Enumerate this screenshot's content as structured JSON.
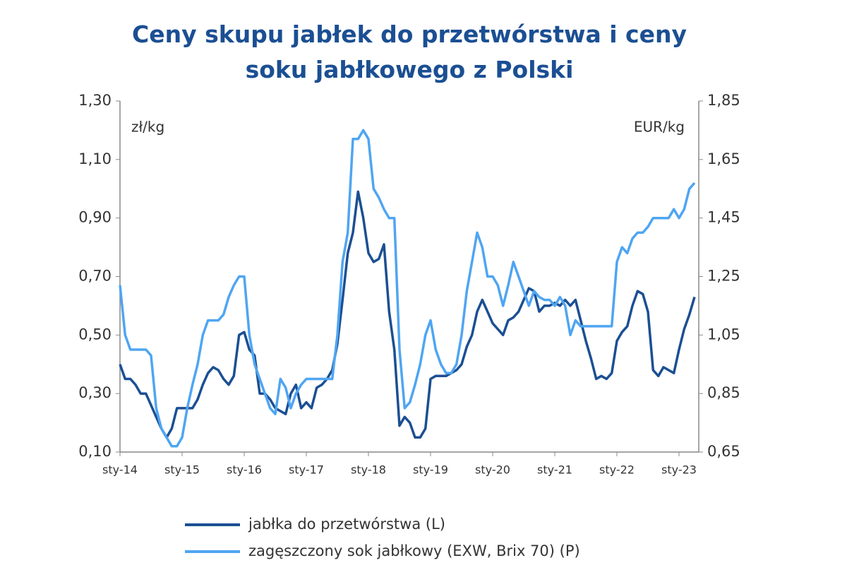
{
  "chart_data": {
    "type": "line",
    "title": "Ceny skupu jabłek do przetwórstwa i ceny soku jabłkowego z Polski",
    "y_label": "zł/kg",
    "y2_label": "EUR/kg",
    "categories": [
      "sty-14",
      null,
      null,
      null,
      null,
      null,
      null,
      null,
      null,
      null,
      null,
      null,
      "sty-15",
      null,
      null,
      null,
      null,
      null,
      null,
      null,
      null,
      null,
      null,
      null,
      "sty-16",
      null,
      null,
      null,
      null,
      null,
      null,
      null,
      null,
      null,
      null,
      null,
      "sty-17",
      null,
      null,
      null,
      null,
      null,
      null,
      null,
      null,
      null,
      null,
      null,
      "sty-18",
      null,
      null,
      null,
      null,
      null,
      null,
      null,
      null,
      null,
      null,
      null,
      "sty-19",
      null,
      null,
      null,
      null,
      null,
      null,
      null,
      null,
      null,
      null,
      null,
      "sty-20",
      null,
      null,
      null,
      null,
      null,
      null,
      null,
      null,
      null,
      null,
      null,
      "sty-21",
      null,
      null,
      null,
      null,
      null,
      null,
      null,
      null,
      null,
      null,
      null,
      "sty-22",
      null,
      null,
      null,
      null,
      null,
      null,
      null,
      null,
      null,
      null,
      null,
      "sty-23",
      null,
      null,
      null
    ],
    "series": [
      {
        "name": "jabłka do przetwórstwa (L)",
        "color": "#1b4f93",
        "axis": "y",
        "values": [
          0.4,
          0.35,
          0.35,
          0.33,
          0.3,
          0.3,
          0.26,
          0.22,
          0.18,
          0.15,
          0.18,
          0.25,
          0.25,
          0.25,
          0.25,
          0.28,
          0.33,
          0.37,
          0.39,
          0.38,
          0.35,
          0.33,
          0.36,
          0.5,
          0.51,
          0.45,
          0.43,
          0.3,
          0.3,
          0.28,
          0.25,
          0.24,
          0.23,
          0.3,
          0.33,
          0.25,
          0.27,
          0.25,
          0.32,
          0.33,
          0.35,
          0.38,
          0.47,
          0.62,
          0.78,
          0.85,
          0.99,
          0.9,
          0.78,
          0.75,
          0.76,
          0.81,
          0.58,
          0.45,
          0.19,
          0.22,
          0.2,
          0.15,
          0.15,
          0.18,
          0.35,
          0.36,
          0.36,
          0.36,
          0.37,
          0.38,
          0.4,
          0.46,
          0.5,
          0.58,
          0.62,
          0.58,
          0.54,
          0.52,
          0.5,
          0.55,
          0.56,
          0.58,
          0.62,
          0.66,
          0.65,
          0.58,
          0.6,
          0.6,
          0.61,
          0.6,
          0.62,
          0.6,
          0.62,
          0.55,
          0.48,
          0.42,
          0.35,
          0.36,
          0.35,
          0.37,
          0.48,
          0.51,
          0.53,
          0.6,
          0.65,
          0.64,
          0.58,
          0.38,
          0.36,
          0.39,
          0.38,
          0.37,
          0.45,
          0.52,
          0.57,
          0.63
        ]
      },
      {
        "name": "zagęszczony sok jabłkowy (EXW, Brix 70) (P)",
        "color": "#4fa5f2",
        "axis": "y2",
        "values": [
          1.22,
          1.05,
          1.0,
          1.0,
          1.0,
          1.0,
          0.98,
          0.8,
          0.73,
          0.7,
          0.67,
          0.67,
          0.7,
          0.8,
          0.88,
          0.95,
          1.05,
          1.1,
          1.1,
          1.1,
          1.12,
          1.18,
          1.22,
          1.25,
          1.25,
          1.05,
          0.95,
          0.9,
          0.85,
          0.8,
          0.78,
          0.9,
          0.87,
          0.8,
          0.85,
          0.88,
          0.9,
          0.9,
          0.9,
          0.9,
          0.9,
          0.9,
          1.05,
          1.3,
          1.4,
          1.72,
          1.72,
          1.75,
          1.72,
          1.55,
          1.52,
          1.48,
          1.45,
          1.45,
          1.0,
          0.8,
          0.82,
          0.88,
          0.95,
          1.05,
          1.1,
          1.0,
          0.95,
          0.92,
          0.92,
          0.95,
          1.05,
          1.2,
          1.3,
          1.4,
          1.35,
          1.25,
          1.25,
          1.22,
          1.15,
          1.22,
          1.3,
          1.25,
          1.2,
          1.15,
          1.2,
          1.18,
          1.17,
          1.17,
          1.15,
          1.18,
          1.15,
          1.05,
          1.1,
          1.08,
          1.08,
          1.08,
          1.08,
          1.08,
          1.08,
          1.08,
          1.3,
          1.35,
          1.33,
          1.38,
          1.4,
          1.4,
          1.42,
          1.45,
          1.45,
          1.45,
          1.45,
          1.48,
          1.45,
          1.48,
          1.55,
          1.57
        ]
      }
    ],
    "ylim": [
      0.1,
      1.3
    ],
    "yticks": [
      {
        "value": 0.1,
        "label": "0,10"
      },
      {
        "value": 0.3,
        "label": "0,30"
      },
      {
        "value": 0.5,
        "label": "0,50"
      },
      {
        "value": 0.7,
        "label": "0,70"
      },
      {
        "value": 0.9,
        "label": "0,90"
      },
      {
        "value": 1.1,
        "label": "1,10"
      },
      {
        "value": 1.3,
        "label": "1,30"
      }
    ],
    "y2lim": [
      0.65,
      1.85
    ],
    "y2ticks": [
      {
        "value": 0.65,
        "label": "0,65"
      },
      {
        "value": 0.85,
        "label": "0,85"
      },
      {
        "value": 1.05,
        "label": "1,05"
      },
      {
        "value": 1.25,
        "label": "1,25"
      },
      {
        "value": 1.45,
        "label": "1,45"
      },
      {
        "value": 1.65,
        "label": "1,65"
      },
      {
        "value": 1.85,
        "label": "1,85"
      }
    ],
    "grid": false,
    "legend": "bottom"
  }
}
